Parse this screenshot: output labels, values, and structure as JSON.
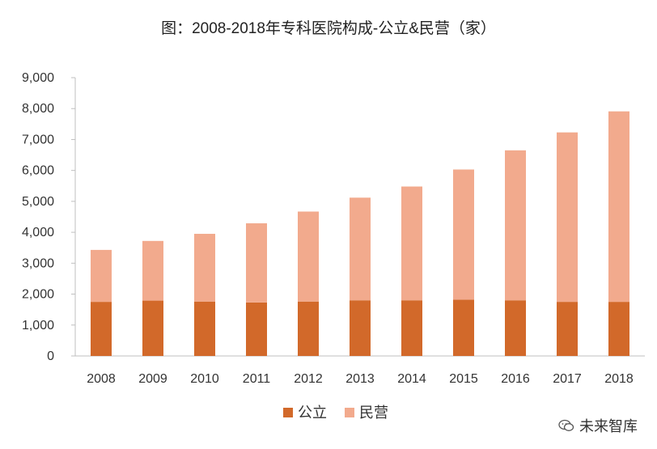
{
  "chart_data": {
    "type": "bar",
    "stacked": true,
    "title": "图：2008-2018年专科医院构成-公立&民营（家）",
    "categories": [
      "2008",
      "2009",
      "2010",
      "2011",
      "2012",
      "2013",
      "2014",
      "2015",
      "2016",
      "2017",
      "2018"
    ],
    "series": [
      {
        "name": "公立",
        "color": "#D2692A",
        "values": [
          1750,
          1790,
          1760,
          1730,
          1760,
          1800,
          1800,
          1820,
          1800,
          1750,
          1750
        ]
      },
      {
        "name": "民营",
        "color": "#F2AA8D",
        "values": [
          1680,
          1930,
          2190,
          2560,
          2910,
          3320,
          3680,
          4210,
          4850,
          5480,
          6160
        ]
      }
    ],
    "ylim": [
      0,
      9000
    ],
    "yticks": [
      0,
      1000,
      2000,
      3000,
      4000,
      5000,
      6000,
      7000,
      8000,
      9000
    ],
    "ytick_labels": [
      "0",
      "1,000",
      "2,000",
      "3,000",
      "4,000",
      "5,000",
      "6,000",
      "7,000",
      "8,000",
      "9,000"
    ],
    "legend_position": "bottom",
    "grid": false
  },
  "watermark": {
    "text": "未来智库",
    "icon": "wechat-icon"
  }
}
